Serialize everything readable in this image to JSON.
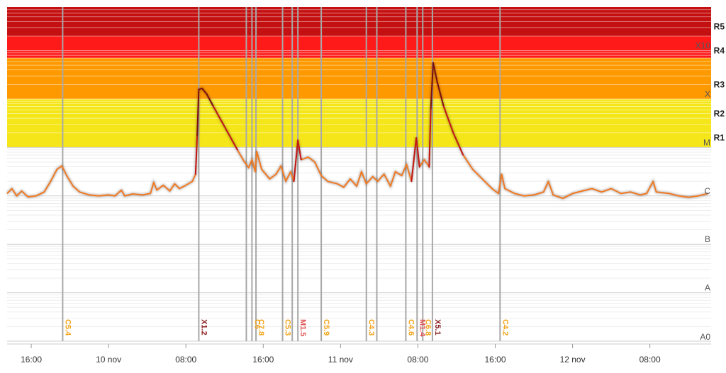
{
  "chart_data": {
    "type": "line",
    "title": "",
    "xlabel": "",
    "ylabel": "",
    "y_scale": "log",
    "y_unit_note": "X-ray flux class scale",
    "grid": true,
    "x_range": [
      "2025-11-09 13:30",
      "2025-11-12 14:20"
    ],
    "x_ticks": [
      {
        "t": "2025-11-09 16:00",
        "label": "16:00"
      },
      {
        "t": "2025-11-10 00:00",
        "label": "10 nov"
      },
      {
        "t": "2025-11-10 08:00",
        "label": "08:00"
      },
      {
        "t": "2025-11-10 16:00",
        "label": "16:00"
      },
      {
        "t": "2025-11-11 00:00",
        "label": "11 nov"
      },
      {
        "t": "2025-11-11 08:00",
        "label": "08:00"
      },
      {
        "t": "2025-11-11 16:00",
        "label": "16:00"
      },
      {
        "t": "2025-11-12 00:00",
        "label": "12 nov"
      },
      {
        "t": "2025-11-12 08:00",
        "label": "08:00"
      }
    ],
    "y_levels": [
      {
        "label": "A0",
        "exp": 0
      },
      {
        "label": "A",
        "exp": 1
      },
      {
        "label": "B",
        "exp": 2
      },
      {
        "label": "C",
        "exp": 3
      },
      {
        "label": "M",
        "exp": 4
      },
      {
        "label": "X",
        "exp": 5
      },
      {
        "label": "X10",
        "exp": 6
      }
    ],
    "radio_levels": [
      {
        "label": "R1",
        "exp": 4.2
      },
      {
        "label": "R2",
        "exp": 4.7
      },
      {
        "label": "R3",
        "exp": 5.3
      },
      {
        "label": "R4",
        "exp": 6.0
      },
      {
        "label": "R5",
        "exp": 6.5
      }
    ],
    "bands": [
      {
        "from": 4.0,
        "to": 5.0,
        "color": "#f5e61a"
      },
      {
        "from": 5.0,
        "to": 5.85,
        "color": "#ff9900"
      },
      {
        "from": 5.85,
        "to": 6.3,
        "color": "#ff1a1a"
      },
      {
        "from": 6.3,
        "to": 6.9,
        "color": "#c41010"
      }
    ],
    "band_colors": {
      "minor": "#f5e61a",
      "moderate": "#ff9900",
      "strong": "#ff1a1a",
      "severe": "#c41010"
    },
    "line_color": "#f07a24",
    "flares": [
      {
        "t": "2025-11-09 19:15",
        "class": "C5.4",
        "color": "#f2a41a"
      },
      {
        "t": "2025-11-10 09:20",
        "class": "X1.2",
        "color": "#8a1f1f"
      },
      {
        "t": "2025-11-10 14:15",
        "class": "",
        "color": "#f2a41a"
      },
      {
        "t": "2025-11-10 14:50",
        "class": "C6",
        "color": "#f2a41a"
      },
      {
        "t": "2025-11-10 15:15",
        "class": "C7.8",
        "color": "#f2a41a"
      },
      {
        "t": "2025-11-10 18:00",
        "class": "C5.3",
        "color": "#f2a41a"
      },
      {
        "t": "2025-11-10 19:00",
        "class": "",
        "color": "#f2a41a"
      },
      {
        "t": "2025-11-10 19:35",
        "class": "M1.5",
        "color": "#e05555"
      },
      {
        "t": "2025-11-10 22:00",
        "class": "C5.9",
        "color": "#f2a41a"
      },
      {
        "t": "2025-11-11 02:40",
        "class": "C4.3",
        "color": "#f2a41a"
      },
      {
        "t": "2025-11-11 03:45",
        "class": "",
        "color": "#f2a41a"
      },
      {
        "t": "2025-11-11 06:45",
        "class": "C4.6",
        "color": "#f2a41a"
      },
      {
        "t": "2025-11-11 07:55",
        "class": "M1.4",
        "color": "#e05555"
      },
      {
        "t": "2025-11-11 08:30",
        "class": "C6.8",
        "color": "#f2a41a"
      },
      {
        "t": "2025-11-11 09:30",
        "class": "X5.1",
        "color": "#8a1f1f"
      },
      {
        "t": "2025-11-11 16:30",
        "class": "C4.2",
        "color": "#f2a41a"
      }
    ],
    "flux": [
      [
        "2025-11-09 13:30",
        3.05
      ],
      [
        "2025-11-09 14:00",
        3.15
      ],
      [
        "2025-11-09 14:30",
        3.0
      ],
      [
        "2025-11-09 15:00",
        3.1
      ],
      [
        "2025-11-09 15:40",
        2.98
      ],
      [
        "2025-11-09 16:30",
        3.0
      ],
      [
        "2025-11-09 17:20",
        3.08
      ],
      [
        "2025-11-09 18:00",
        3.3
      ],
      [
        "2025-11-09 18:40",
        3.55
      ],
      [
        "2025-11-09 19:10",
        3.62
      ],
      [
        "2025-11-09 19:40",
        3.42
      ],
      [
        "2025-11-09 20:20",
        3.2
      ],
      [
        "2025-11-09 21:00",
        3.08
      ],
      [
        "2025-11-09 22:00",
        3.02
      ],
      [
        "2025-11-09 23:00",
        3.0
      ],
      [
        "2025-11-10 00:00",
        3.02
      ],
      [
        "2025-11-10 00:40",
        3.0
      ],
      [
        "2025-11-10 01:20",
        3.12
      ],
      [
        "2025-11-10 01:40",
        3.0
      ],
      [
        "2025-11-10 02:30",
        3.04
      ],
      [
        "2025-11-10 03:30",
        3.02
      ],
      [
        "2025-11-10 04:20",
        3.05
      ],
      [
        "2025-11-10 04:40",
        3.28
      ],
      [
        "2025-11-10 05:00",
        3.12
      ],
      [
        "2025-11-10 05:40",
        3.22
      ],
      [
        "2025-11-10 06:20",
        3.1
      ],
      [
        "2025-11-10 06:50",
        3.25
      ],
      [
        "2025-11-10 07:20",
        3.15
      ],
      [
        "2025-11-10 08:00",
        3.22
      ],
      [
        "2025-11-10 08:40",
        3.3
      ],
      [
        "2025-11-10 09:00",
        3.45
      ],
      [
        "2025-11-10 09:10",
        4.25
      ],
      [
        "2025-11-10 09:20",
        5.2
      ],
      [
        "2025-11-10 09:40",
        5.22
      ],
      [
        "2025-11-10 10:10",
        5.1
      ],
      [
        "2025-11-10 10:50",
        4.85
      ],
      [
        "2025-11-10 11:40",
        4.55
      ],
      [
        "2025-11-10 12:30",
        4.25
      ],
      [
        "2025-11-10 13:20",
        3.95
      ],
      [
        "2025-11-10 14:00",
        3.72
      ],
      [
        "2025-11-10 14:30",
        3.58
      ],
      [
        "2025-11-10 14:50",
        3.75
      ],
      [
        "2025-11-10 15:10",
        3.5
      ],
      [
        "2025-11-10 15:20",
        3.92
      ],
      [
        "2025-11-10 15:50",
        3.55
      ],
      [
        "2025-11-10 16:40",
        3.35
      ],
      [
        "2025-11-10 17:20",
        3.45
      ],
      [
        "2025-11-10 17:50",
        3.62
      ],
      [
        "2025-11-10 18:20",
        3.3
      ],
      [
        "2025-11-10 18:50",
        3.5
      ],
      [
        "2025-11-10 19:10",
        3.3
      ],
      [
        "2025-11-10 19:35",
        4.15
      ],
      [
        "2025-11-10 19:55",
        3.75
      ],
      [
        "2025-11-10 20:40",
        3.8
      ],
      [
        "2025-11-10 21:20",
        3.7
      ],
      [
        "2025-11-10 22:00",
        3.42
      ],
      [
        "2025-11-10 22:40",
        3.3
      ],
      [
        "2025-11-10 23:40",
        3.25
      ],
      [
        "2025-11-11 00:20",
        3.18
      ],
      [
        "2025-11-11 01:00",
        3.35
      ],
      [
        "2025-11-11 01:40",
        3.2
      ],
      [
        "2025-11-11 02:10",
        3.5
      ],
      [
        "2025-11-11 02:40",
        3.25
      ],
      [
        "2025-11-11 03:20",
        3.4
      ],
      [
        "2025-11-11 03:50",
        3.3
      ],
      [
        "2025-11-11 04:30",
        3.45
      ],
      [
        "2025-11-11 05:10",
        3.2
      ],
      [
        "2025-11-11 05:40",
        3.5
      ],
      [
        "2025-11-11 06:20",
        3.42
      ],
      [
        "2025-11-11 06:50",
        3.65
      ],
      [
        "2025-11-11 07:20",
        3.3
      ],
      [
        "2025-11-11 07:50",
        4.2
      ],
      [
        "2025-11-11 08:10",
        3.6
      ],
      [
        "2025-11-11 08:40",
        3.75
      ],
      [
        "2025-11-11 09:10",
        3.6
      ],
      [
        "2025-11-11 09:20",
        4.8
      ],
      [
        "2025-11-11 09:35",
        5.75
      ],
      [
        "2025-11-11 10:00",
        5.35
      ],
      [
        "2025-11-11 10:40",
        4.85
      ],
      [
        "2025-11-11 11:40",
        4.3
      ],
      [
        "2025-11-11 12:40",
        3.85
      ],
      [
        "2025-11-11 13:40",
        3.55
      ],
      [
        "2025-11-11 14:40",
        3.35
      ],
      [
        "2025-11-11 15:40",
        3.15
      ],
      [
        "2025-11-11 16:20",
        3.05
      ],
      [
        "2025-11-11 16:40",
        3.45
      ],
      [
        "2025-11-11 17:00",
        3.15
      ],
      [
        "2025-11-11 18:00",
        3.05
      ],
      [
        "2025-11-11 19:00",
        3.0
      ],
      [
        "2025-11-11 20:00",
        3.02
      ],
      [
        "2025-11-11 21:00",
        3.08
      ],
      [
        "2025-11-11 21:30",
        3.3
      ],
      [
        "2025-11-11 22:00",
        3.02
      ],
      [
        "2025-11-11 23:00",
        2.95
      ],
      [
        "2025-11-12 00:00",
        3.05
      ],
      [
        "2025-11-12 01:00",
        3.1
      ],
      [
        "2025-11-12 02:00",
        3.15
      ],
      [
        "2025-11-12 03:00",
        3.08
      ],
      [
        "2025-11-12 04:00",
        3.15
      ],
      [
        "2025-11-12 05:00",
        3.05
      ],
      [
        "2025-11-12 06:00",
        3.08
      ],
      [
        "2025-11-12 07:00",
        3.02
      ],
      [
        "2025-11-12 07:40",
        3.05
      ],
      [
        "2025-11-12 08:20",
        3.3
      ],
      [
        "2025-11-12 08:40",
        3.08
      ],
      [
        "2025-11-12 10:00",
        3.05
      ],
      [
        "2025-11-12 11:00",
        3.0
      ],
      [
        "2025-11-12 12:00",
        2.97
      ],
      [
        "2025-11-12 13:00",
        3.0
      ],
      [
        "2025-11-12 14:00",
        3.05
      ]
    ]
  }
}
